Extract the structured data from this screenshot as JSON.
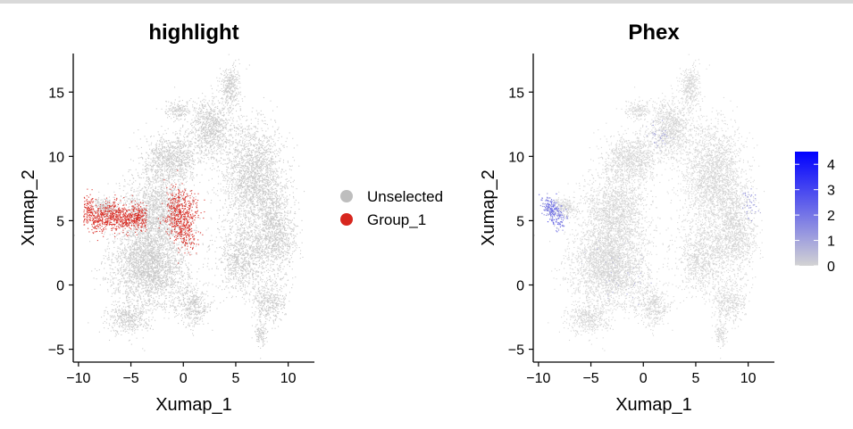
{
  "chart_data": [
    {
      "type": "scatter",
      "title": "highlight",
      "xlabel": "Xumap_1",
      "ylabel": "Xumap_2",
      "xlim": [
        -10.5,
        12.5
      ],
      "ylim": [
        -6,
        18
      ],
      "xticks": [
        -10,
        -5,
        0,
        5,
        10
      ],
      "yticks": [
        -5,
        0,
        5,
        10,
        15
      ],
      "xtick_labels": [
        "−10",
        "−5",
        "0",
        "5",
        "10"
      ],
      "ytick_labels": [
        "−5",
        "0",
        "5",
        "10",
        "15"
      ],
      "grid": false,
      "legend": {
        "position": "right",
        "entries": [
          {
            "label": "Unselected",
            "color": "#bebebe"
          },
          {
            "label": "Group_1",
            "color": "#d7261e"
          }
        ]
      },
      "series": [
        {
          "name": "Unselected",
          "color": "#c8c8c8"
        },
        {
          "name": "Group_1",
          "color": "#d7261e"
        }
      ]
    },
    {
      "type": "scatter",
      "title": "Phex",
      "xlabel": "Xumap_1",
      "ylabel": "Xumap_2",
      "xlim": [
        -10.5,
        12.5
      ],
      "ylim": [
        -6,
        18
      ],
      "xticks": [
        -10,
        -5,
        0,
        5,
        10
      ],
      "yticks": [
        -5,
        0,
        5,
        10,
        15
      ],
      "xtick_labels": [
        "−10",
        "−5",
        "0",
        "5",
        "10"
      ],
      "ytick_labels": [
        "−5",
        "0",
        "5",
        "10",
        "15"
      ],
      "grid": false,
      "colorbar": {
        "position": "right",
        "ticks": [
          0,
          1,
          2,
          3,
          4
        ],
        "tick_labels": [
          "0",
          "1",
          "2",
          "3",
          "4"
        ],
        "range": [
          0,
          4.5
        ],
        "color_low": "#d3d3d3",
        "color_high": "#0000ff"
      }
    }
  ]
}
